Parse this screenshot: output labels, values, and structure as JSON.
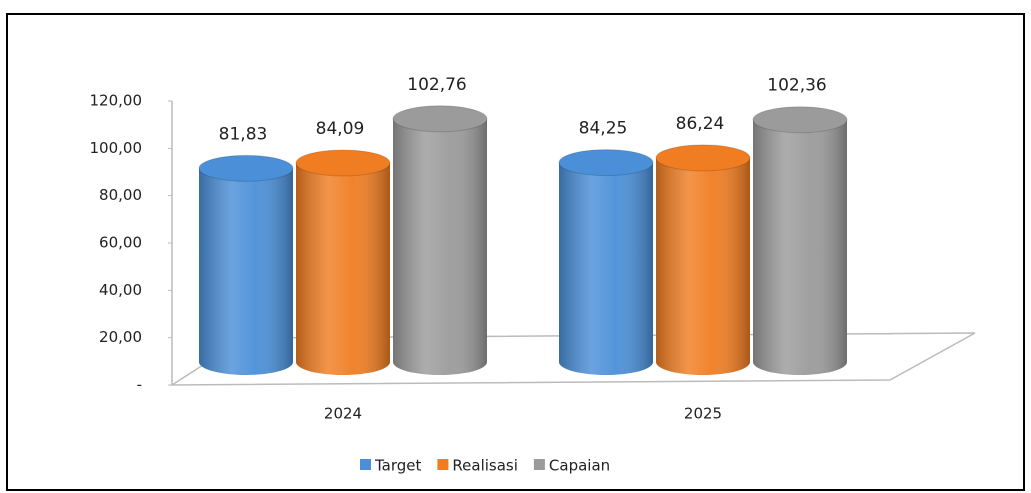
{
  "chart_data": {
    "type": "cylinder",
    "categories": [
      "2024",
      "2025"
    ],
    "series": [
      {
        "name": "Target",
        "color": "#4a8fd8",
        "values": [
          81.83,
          84.25
        ],
        "value_labels": [
          "81,83",
          "84,25"
        ]
      },
      {
        "name": "Realisasi",
        "color": "#f07d22",
        "values": [
          84.09,
          86.24
        ],
        "value_labels": [
          "84,09",
          "86,24"
        ]
      },
      {
        "name": "Capaian",
        "color": "#9b9b9b",
        "values": [
          102.76,
          102.36
        ],
        "value_labels": [
          "102,76",
          "102,36"
        ]
      }
    ],
    "ylim": [
      0,
      120
    ],
    "yticks": [
      {
        "value": 0,
        "label": "-"
      },
      {
        "value": 20,
        "label": "20,00"
      },
      {
        "value": 40,
        "label": "40,00"
      },
      {
        "value": 60,
        "label": "60,00"
      },
      {
        "value": 80,
        "label": "80,00"
      },
      {
        "value": 100,
        "label": "100,00"
      },
      {
        "value": 120,
        "label": "120,00"
      }
    ],
    "legend": "bottom"
  }
}
